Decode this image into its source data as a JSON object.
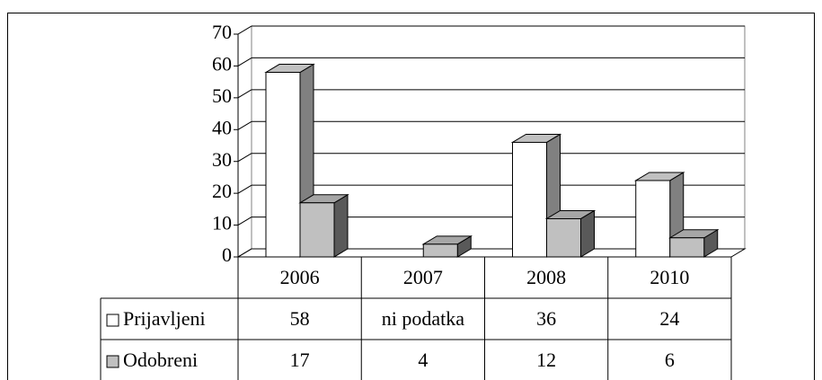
{
  "chart_data": {
    "type": "bar3d",
    "categories": [
      "2006",
      "2007",
      "2008",
      "2010"
    ],
    "series": [
      {
        "name": "Prijavljeni",
        "color": "#ffffff",
        "values": [
          58,
          null,
          36,
          24
        ],
        "value_labels": [
          null,
          "ni podatka",
          null,
          null
        ]
      },
      {
        "name": "Odobreni",
        "color": "#c0c0c0",
        "values": [
          17,
          4,
          12,
          6
        ]
      }
    ],
    "ylim": [
      0,
      70
    ],
    "yticks": [
      0,
      10,
      20,
      30,
      40,
      50,
      60,
      70
    ],
    "grid": true,
    "data_table": true
  }
}
